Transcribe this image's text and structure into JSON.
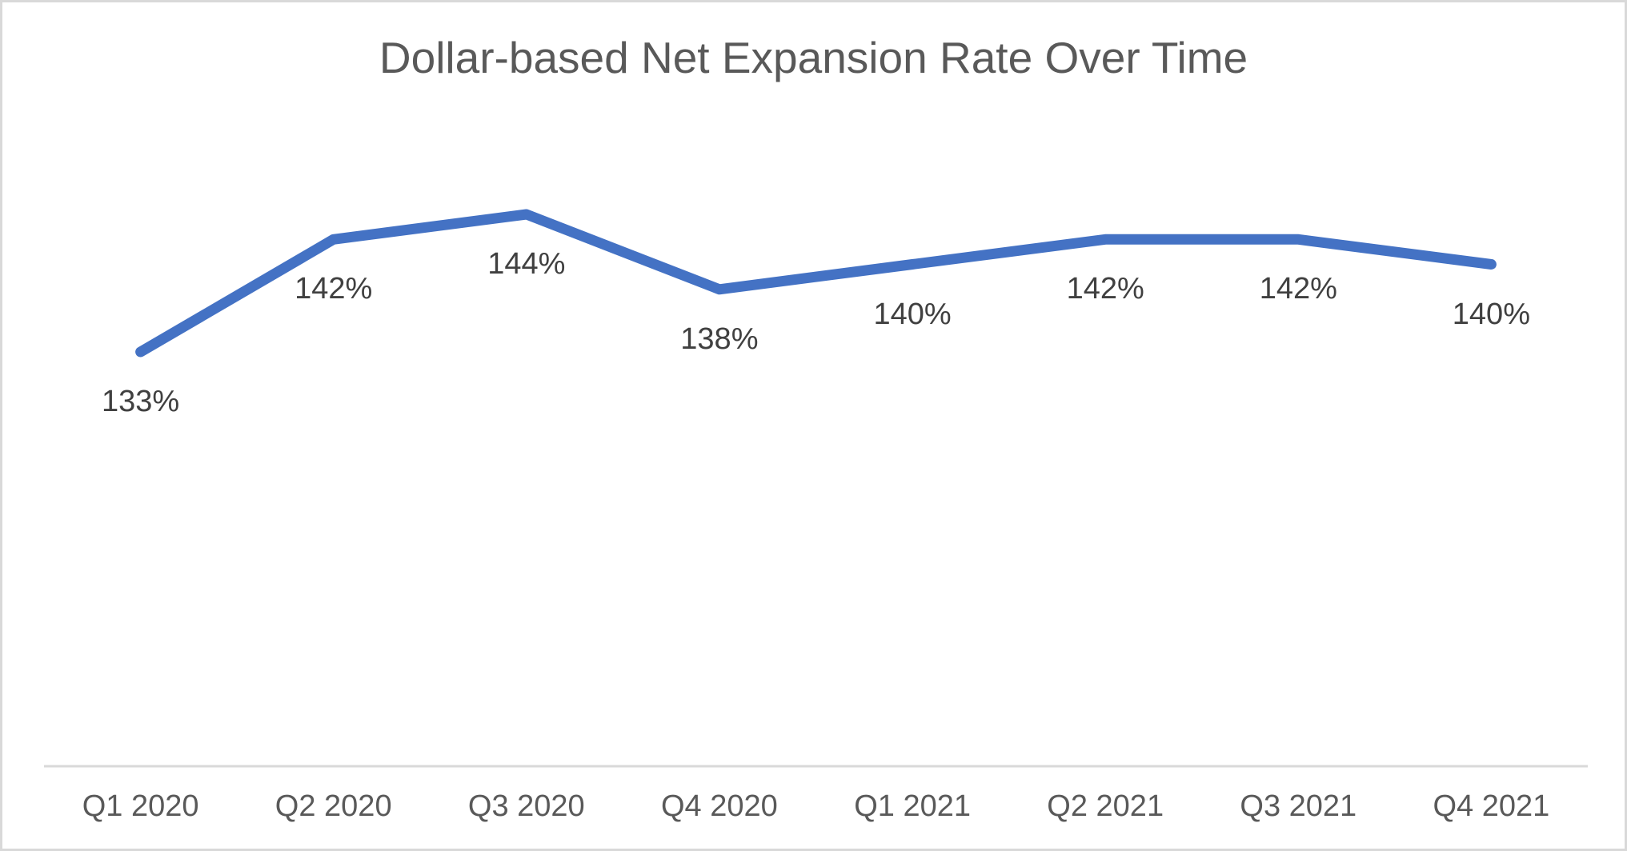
{
  "window": {
    "background": "#ffffff",
    "border_color": "#d9d9d9"
  },
  "chart_data": {
    "type": "line",
    "title": "Dollar-based Net Expansion Rate Over Time",
    "categories": [
      "Q1 2020",
      "Q2 2020",
      "Q3 2020",
      "Q4 2020",
      "Q1 2021",
      "Q2 2021",
      "Q3 2021",
      "Q4 2021"
    ],
    "values": [
      133,
      142,
      144,
      138,
      140,
      142,
      142,
      140
    ],
    "data_labels": [
      "133%",
      "142%",
      "144%",
      "138%",
      "140%",
      "142%",
      "142%",
      "140%"
    ],
    "data_label_position": "below",
    "unit": "%",
    "xlabel": "",
    "ylabel": "",
    "ylim": [
      125,
      152
    ],
    "grid": false,
    "legend": "none",
    "y_axis_visible": false,
    "colors": {
      "line": "#4472C4",
      "title_text": "#595959",
      "data_label_text": "#404040",
      "axis_label_text": "#595959",
      "axis_line": "#d9d9d9"
    }
  }
}
